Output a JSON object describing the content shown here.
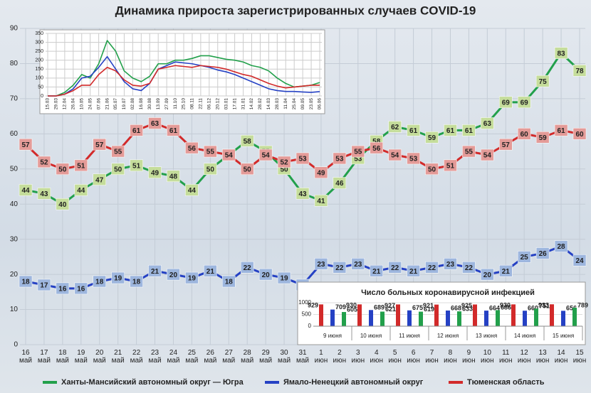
{
  "chart_data": [
    {
      "type": "line",
      "title": "Динамика прироста зарегистрированных случаев COVID-19",
      "categories": [
        "16 май",
        "17 май",
        "18 май",
        "19 май",
        "20 май",
        "21 май",
        "22 май",
        "23 май",
        "24 май",
        "25 май",
        "26 май",
        "27 май",
        "28 май",
        "29 май",
        "30 май",
        "31 май",
        "1 июн",
        "2 июн",
        "3 июн",
        "4 июн",
        "5 июн",
        "6 июн",
        "7 июн",
        "8 июн",
        "9 июн",
        "10 июн",
        "11 июн",
        "12 июн",
        "13 июн",
        "14 июн",
        "15 июн"
      ],
      "series": [
        {
          "name": "Ханты-Мансийский автономный округ — Югра",
          "color": "#22a04b",
          "values": [
            44,
            43,
            40,
            44,
            47,
            50,
            51,
            49,
            48,
            44,
            50,
            54,
            58,
            55,
            50,
            43,
            41,
            46,
            53,
            58,
            62,
            61,
            59,
            61,
            61,
            63,
            69,
            69,
            75,
            83,
            78
          ]
        },
        {
          "name": "Ямало-Ненецкий автономный округ",
          "color": "#2541c4",
          "values": [
            18,
            17,
            16,
            16,
            18,
            19,
            18,
            21,
            20,
            19,
            21,
            18,
            22,
            20,
            19,
            17,
            23,
            22,
            23,
            21,
            22,
            21,
            22,
            23,
            22,
            20,
            21,
            25,
            26,
            28,
            24
          ]
        },
        {
          "name": "Тюменская область",
          "color": "#d22a2a",
          "values": [
            57,
            52,
            50,
            51,
            57,
            55,
            61,
            63,
            61,
            56,
            55,
            54,
            50,
            54,
            52,
            53,
            49,
            53,
            55,
            56,
            54,
            53,
            50,
            51,
            55,
            54,
            57,
            60,
            59,
            61,
            60
          ]
        }
      ],
      "ylim": [
        0,
        90
      ],
      "yticks": [
        0,
        10,
        20,
        30,
        40,
        50,
        60,
        70,
        80,
        90
      ],
      "grid": true
    },
    {
      "type": "line",
      "categories": [
        "15.03",
        "29.03",
        "12.04",
        "26.04",
        "10.05",
        "24.05",
        "07.06",
        "21.06",
        "05.07",
        "19.07",
        "02.08",
        "16.08",
        "30.08",
        "13.09",
        "27.09",
        "11.10",
        "25.10",
        "08.11",
        "22.11",
        "06.12",
        "20.12",
        "03.01",
        "17.01",
        "31.01",
        "14.02",
        "28.02",
        "14.03",
        "28.03",
        "11.04",
        "25.04",
        "09.05",
        "23.05",
        "06.06"
      ],
      "series": [
        {
          "color": "#22a04b",
          "values": [
            0,
            0,
            20,
            60,
            120,
            100,
            180,
            310,
            250,
            140,
            100,
            80,
            110,
            180,
            180,
            200,
            200,
            210,
            225,
            225,
            215,
            205,
            200,
            190,
            170,
            160,
            140,
            100,
            70,
            50,
            55,
            60,
            75
          ]
        },
        {
          "color": "#2541c4",
          "values": [
            0,
            0,
            10,
            40,
            100,
            110,
            160,
            220,
            150,
            80,
            40,
            30,
            70,
            150,
            170,
            190,
            185,
            180,
            170,
            160,
            145,
            135,
            120,
            100,
            80,
            60,
            40,
            30,
            25,
            25,
            22,
            20,
            24
          ]
        },
        {
          "color": "#d22a2a",
          "values": [
            0,
            0,
            10,
            30,
            60,
            60,
            120,
            160,
            140,
            90,
            60,
            55,
            70,
            150,
            160,
            170,
            165,
            160,
            170,
            165,
            160,
            150,
            135,
            120,
            110,
            90,
            70,
            55,
            45,
            50,
            55,
            60,
            60
          ]
        }
      ],
      "ylim": [
        0,
        350
      ],
      "yticks": [
        0,
        50,
        100,
        150,
        200,
        250,
        300,
        350
      ],
      "grid": true
    },
    {
      "type": "bar",
      "title": "Число больных коронавирусной инфекцией",
      "categories": [
        "9 июня",
        "10 июня",
        "11 июня",
        "12 июня",
        "13 июня",
        "14 июня",
        "15 июня"
      ],
      "series": [
        {
          "color": "#d22a2a",
          "values": [
            929,
            930,
            927,
            921,
            925,
            930,
            933
          ]
        },
        {
          "color": "#2541c4",
          "values": [
            709,
            689,
            675,
            668,
            664,
            660,
            656
          ]
        },
        {
          "color": "#22a04b",
          "values": [
            605,
            621,
            619,
            633,
            686,
            751,
            789
          ]
        }
      ],
      "ylim": [
        0,
        1000
      ],
      "yticks": [
        0,
        500,
        1000
      ],
      "grid": true
    }
  ]
}
